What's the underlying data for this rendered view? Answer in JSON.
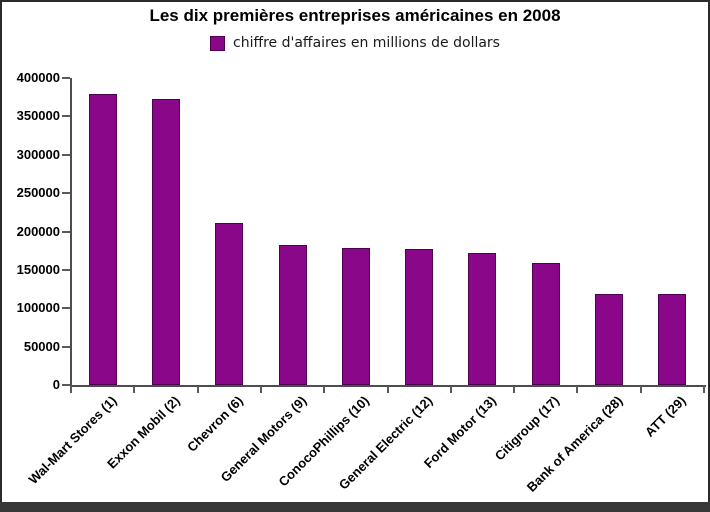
{
  "window": {
    "background": "#ffffff",
    "frame_border_color": "#2b2b2b",
    "bottom_strip_color": "#383838"
  },
  "chart_data": {
    "type": "bar",
    "title": "Les dix premières entreprises américaines en 2008",
    "legend": {
      "label": "chiffre d'affaires en millions de dollars",
      "position": "top-center"
    },
    "categories": [
      "Wal-Mart Stores (1)",
      "Exxon Mobil (2)",
      "Chevron (6)",
      "General Motors (9)",
      "ConocoPhillips (10)",
      "General Electric (12)",
      "Ford Motor (13)",
      "Citigroup (17)",
      "Bank of America (28)",
      "ATT (29)"
    ],
    "values": [
      378799,
      372824,
      210783,
      182347,
      178558,
      176656,
      172468,
      159229,
      119190,
      118928
    ],
    "xlabel": "",
    "ylabel": "",
    "ylim": [
      0,
      400000
    ],
    "ytick_step": 50000,
    "yticks": [
      0,
      50000,
      100000,
      150000,
      200000,
      250000,
      300000,
      350000,
      400000
    ],
    "grid": false,
    "x_labels_rotation_deg": -45,
    "colors": {
      "bar_fill": "#8B0789",
      "bar_border": "#4C0250",
      "axis": "#4D4D4D",
      "tick": "#5A5A5A",
      "text": "#000000"
    }
  }
}
